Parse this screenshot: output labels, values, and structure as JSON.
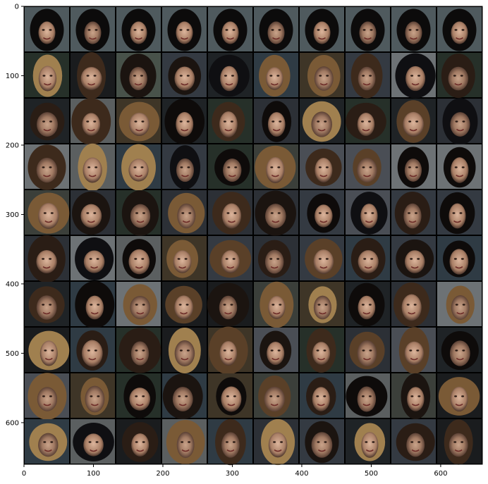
{
  "figure": {
    "image_description_alt": "",
    "grid": {
      "rows": 10,
      "cols": 10
    },
    "x_axis": {
      "range": [
        0,
        660
      ],
      "ticks": [
        0,
        100,
        200,
        300,
        400,
        500,
        600
      ]
    },
    "y_axis": {
      "range": [
        0,
        660
      ],
      "ticks": [
        0,
        100,
        200,
        300,
        400,
        500,
        600
      ],
      "inverted": true
    },
    "colors": {
      "background": "#ffffff",
      "grid_lines": "#000000",
      "axes": "#000000"
    }
  }
}
